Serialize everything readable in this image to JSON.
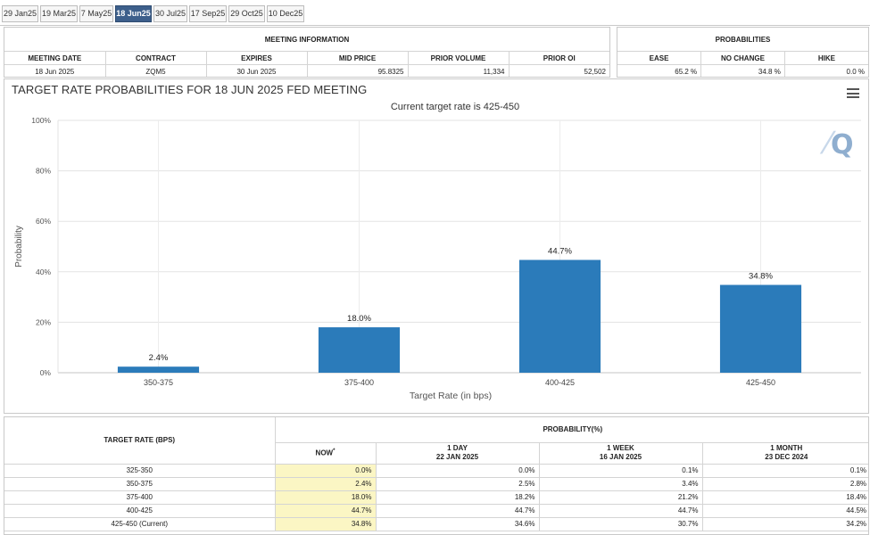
{
  "tabs": [
    {
      "label": "29 Jan25",
      "active": false
    },
    {
      "label": "19 Mar25",
      "active": false
    },
    {
      "label": "7 May25",
      "active": false
    },
    {
      "label": "18 Jun25",
      "active": true
    },
    {
      "label": "30 Jul25",
      "active": false
    },
    {
      "label": "17 Sep25",
      "active": false
    },
    {
      "label": "29 Oct25",
      "active": false
    },
    {
      "label": "10 Dec25",
      "active": false
    }
  ],
  "meeting_info": {
    "section_title": "MEETING INFORMATION",
    "headers": [
      "MEETING DATE",
      "CONTRACT",
      "EXPIRES",
      "MID PRICE",
      "PRIOR VOLUME",
      "PRIOR OI"
    ],
    "values": [
      "18 Jun 2025",
      "ZQM5",
      "30 Jun 2025",
      "95.8325",
      "11,334",
      "52,502"
    ]
  },
  "probabilities": {
    "section_title": "PROBABILITIES",
    "headers": [
      "EASE",
      "NO CHANGE",
      "HIKE"
    ],
    "values": [
      "65.2 %",
      "34.8 %",
      "0.0 %"
    ]
  },
  "chart": {
    "title": "TARGET RATE PROBABILITIES FOR 18 JUN 2025 FED MEETING",
    "subtitle": "Current target rate is 425-450",
    "accent": "#2b7bba"
  },
  "chart_data": {
    "type": "bar",
    "title": "TARGET RATE PROBABILITIES FOR 18 JUN 2025 FED MEETING",
    "subtitle": "Current target rate is 425-450",
    "xlabel": "Target Rate (in bps)",
    "ylabel": "Probability",
    "categories": [
      "350-375",
      "375-400",
      "400-425",
      "425-450"
    ],
    "values": [
      2.4,
      18.0,
      44.7,
      34.8
    ],
    "data_labels": [
      "2.4%",
      "18.0%",
      "44.7%",
      "34.8%"
    ],
    "ylim": [
      0,
      100
    ],
    "yticks": [
      "0%",
      "20%",
      "40%",
      "60%",
      "80%",
      "100%"
    ],
    "ytick_values": [
      0,
      20,
      40,
      60,
      80,
      100
    ],
    "grid": true,
    "color": "#2b7bba"
  },
  "prob_table": {
    "rate_header": "TARGET RATE (BPS)",
    "prob_header": "PROBABILITY(%)",
    "col_now": "NOW",
    "col_now_mark": "*",
    "col_1day": {
      "label": "1 DAY",
      "date": "22 JAN 2025"
    },
    "col_1week": {
      "label": "1 WEEK",
      "date": "16 JAN 2025"
    },
    "col_1month": {
      "label": "1 MONTH",
      "date": "23 DEC 2024"
    },
    "rows": [
      {
        "rate": "325-350",
        "now": "0.0%",
        "day": "0.0%",
        "week": "0.1%",
        "month": "0.1%"
      },
      {
        "rate": "350-375",
        "now": "2.4%",
        "day": "2.5%",
        "week": "3.4%",
        "month": "2.8%"
      },
      {
        "rate": "375-400",
        "now": "18.0%",
        "day": "18.2%",
        "week": "21.2%",
        "month": "18.4%"
      },
      {
        "rate": "400-425",
        "now": "44.7%",
        "day": "44.7%",
        "week": "44.7%",
        "month": "44.5%"
      },
      {
        "rate": "425-450 (Current)",
        "now": "34.8%",
        "day": "34.6%",
        "week": "30.7%",
        "month": "34.2%"
      }
    ]
  },
  "icons": {
    "menu": "hamburger-menu-icon",
    "logo": "quikstrike-logo-icon"
  }
}
